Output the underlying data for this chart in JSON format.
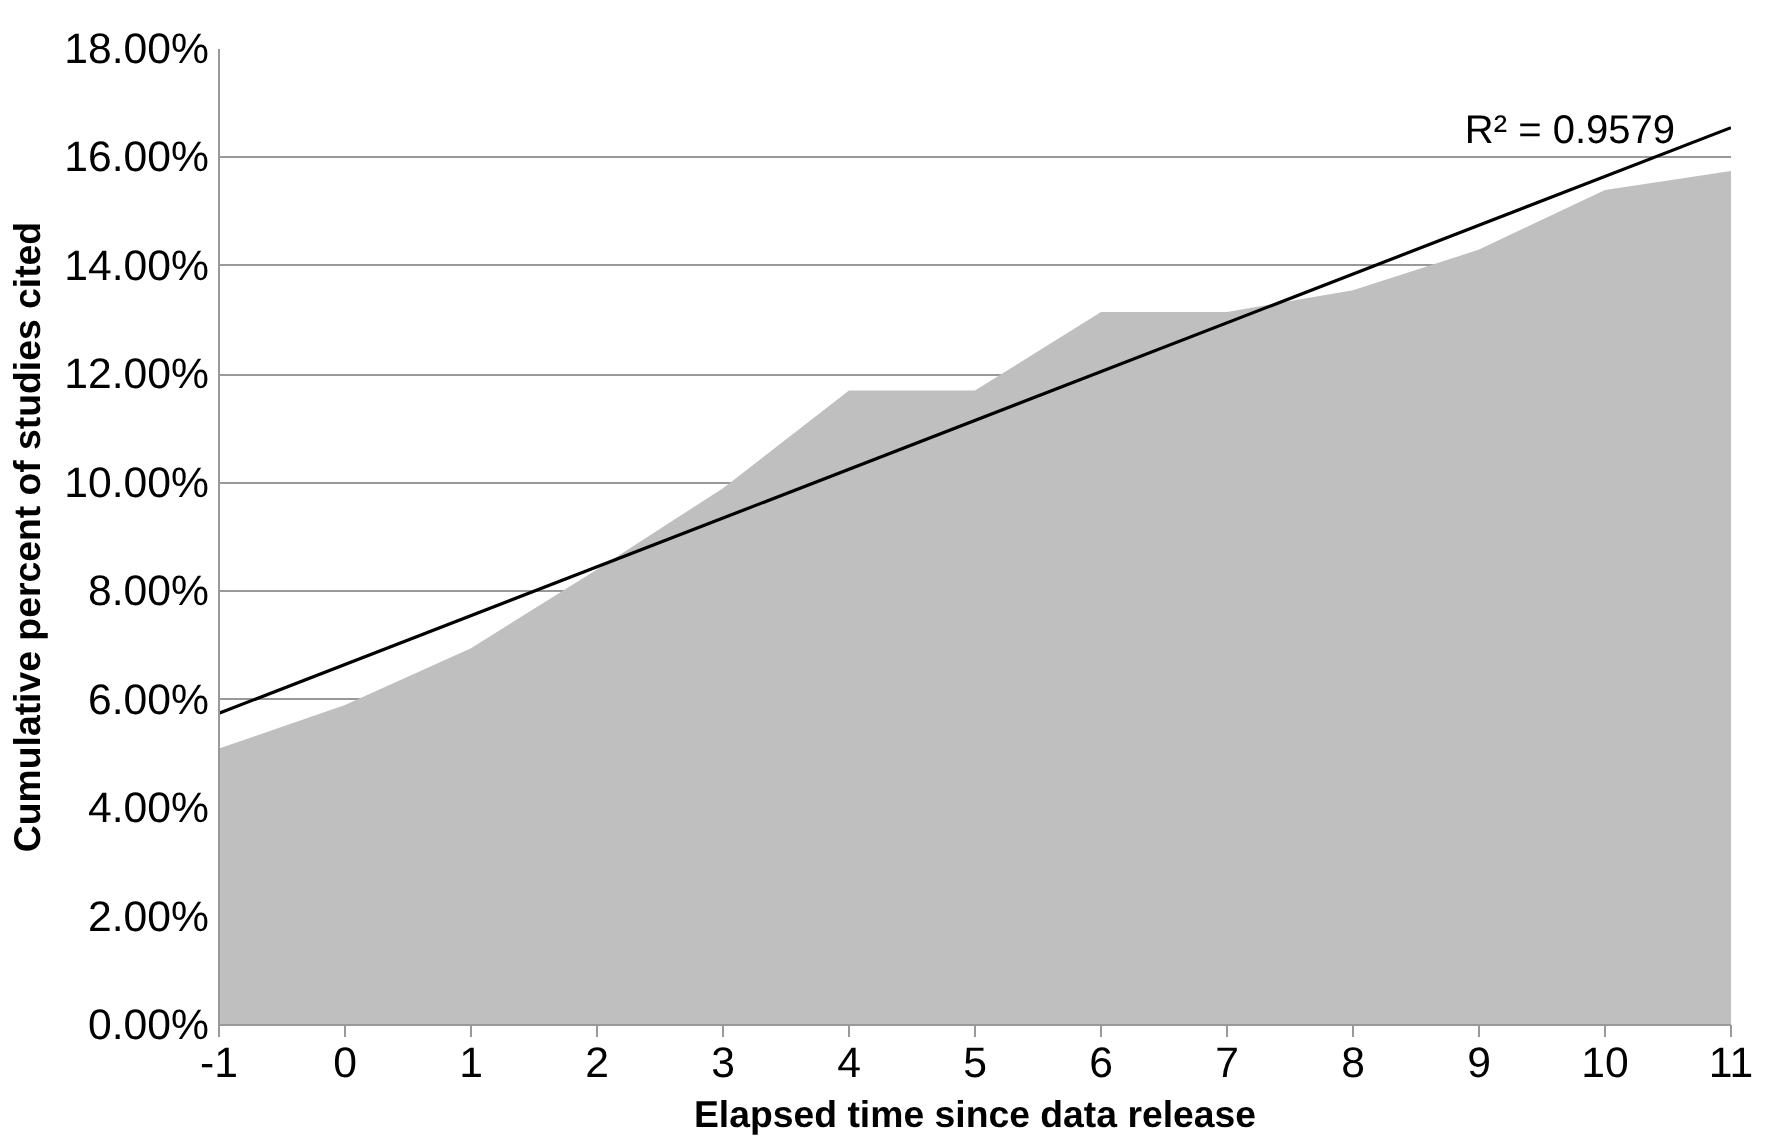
{
  "chart_data": {
    "type": "area",
    "xlabel": "Elapsed time since data release",
    "ylabel": "Cumulative percent of studies cited",
    "x": [
      -1,
      0,
      1,
      2,
      3,
      4,
      5,
      6,
      7,
      8,
      9,
      10,
      11
    ],
    "series": [
      {
        "color": "#bfbfbf",
        "values": [
          5.1,
          5.9,
          6.95,
          8.4,
          9.9,
          11.7,
          11.7,
          13.15,
          13.15,
          13.55,
          14.3,
          15.4,
          15.75
        ]
      },
      {
        "type": "line",
        "color": "#000000",
        "x": [
          -1,
          11
        ],
        "values": [
          5.75,
          16.55
        ]
      }
    ],
    "annotations": [
      "R² = 0.9579"
    ],
    "xlim": [
      -1,
      11
    ],
    "xticks": [
      {
        "value": -1,
        "label": "-1"
      },
      0,
      1,
      2,
      3,
      4,
      5,
      6,
      7,
      8,
      9,
      10,
      11
    ],
    "ylim": [
      0,
      18
    ],
    "yticks": [
      {
        "value": 0,
        "label": "0.00%"
      },
      {
        "value": 2,
        "label": "2.00%"
      },
      {
        "value": 4,
        "label": "4.00%"
      },
      {
        "value": 6,
        "label": "6.00%"
      },
      {
        "value": 8,
        "label": "8.00%"
      },
      {
        "value": 10,
        "label": "10.00%"
      },
      {
        "value": 12,
        "label": "12.00%"
      },
      {
        "value": 14,
        "label": "14.00%"
      },
      {
        "value": 16,
        "label": "16.00%"
      },
      {
        "value": 18,
        "label": "18.00%"
      }
    ],
    "grid": "y"
  }
}
